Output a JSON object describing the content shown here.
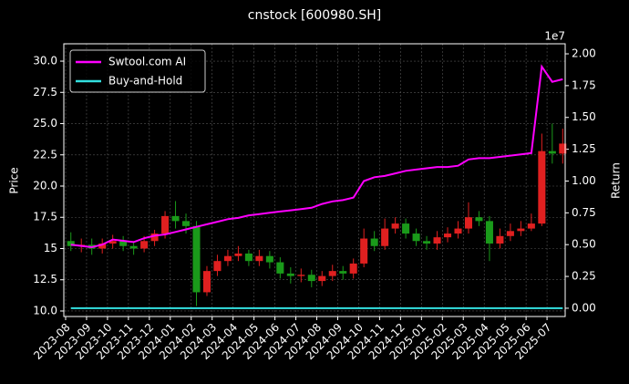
{
  "chart_data": {
    "type": "candlestick",
    "title": "cnstock [600980.SH]",
    "ylabel": "Price",
    "y2label": "Return",
    "y2_offset_label": "1e7",
    "up_color": "#e02020",
    "down_color": "#1a9a1a",
    "grid": true,
    "legend": "upper left",
    "x": [
      "2023-08",
      "2023-08",
      "2023-09",
      "2023-09",
      "2023-10",
      "2023-10",
      "2023-11",
      "2023-11",
      "2023-12",
      "2023-12",
      "2024-01",
      "2024-01",
      "2024-02",
      "2024-02",
      "2024-03",
      "2024-03",
      "2024-04",
      "2024-04",
      "2024-05",
      "2024-05",
      "2024-06",
      "2024-06",
      "2024-07",
      "2024-07",
      "2024-08",
      "2024-08",
      "2024-09",
      "2024-09",
      "2024-10",
      "2024-10",
      "2024-11",
      "2024-11",
      "2024-12",
      "2024-12",
      "2025-01",
      "2025-01",
      "2025-02",
      "2025-02",
      "2025-03",
      "2025-03",
      "2025-04",
      "2025-04",
      "2025-05",
      "2025-05",
      "2025-06",
      "2025-06",
      "2025-07",
      "2025-07"
    ],
    "open": [
      15.6,
      15.2,
      15.3,
      15.0,
      15.4,
      15.6,
      15.2,
      15.0,
      15.6,
      16.2,
      17.6,
      17.2,
      16.8,
      11.5,
      13.2,
      14.0,
      14.4,
      14.6,
      14.0,
      14.4,
      13.9,
      13.0,
      12.8,
      12.9,
      12.4,
      12.8,
      13.2,
      13.0,
      13.8,
      15.8,
      15.2,
      16.6,
      17.0,
      16.2,
      15.6,
      15.4,
      15.9,
      16.2,
      16.6,
      17.5,
      17.2,
      15.4,
      16.0,
      16.4,
      16.6,
      17.0,
      22.8,
      22.6
    ],
    "high": [
      16.3,
      15.8,
      15.8,
      15.8,
      16.1,
      16.0,
      15.6,
      16.0,
      16.5,
      18.0,
      18.8,
      17.8,
      17.2,
      13.6,
      14.5,
      14.9,
      15.2,
      14.9,
      14.9,
      14.8,
      14.3,
      13.5,
      13.4,
      13.3,
      13.2,
      13.7,
      13.6,
      14.2,
      16.6,
      16.4,
      17.4,
      17.5,
      17.4,
      16.6,
      16.0,
      16.4,
      16.7,
      17.2,
      18.7,
      18.0,
      17.6,
      16.6,
      17.0,
      17.2,
      17.8,
      24.2,
      25.0,
      24.6
    ],
    "low": [
      14.8,
      14.7,
      14.5,
      14.6,
      15.0,
      14.8,
      14.5,
      14.7,
      15.2,
      15.8,
      16.6,
      16.2,
      10.4,
      11.2,
      12.8,
      13.6,
      14.0,
      13.6,
      13.6,
      13.4,
      12.6,
      12.2,
      12.3,
      11.9,
      12.0,
      12.4,
      12.5,
      12.6,
      13.5,
      14.8,
      14.9,
      16.2,
      15.8,
      15.2,
      14.9,
      14.9,
      15.5,
      15.8,
      16.2,
      16.8,
      14.0,
      15.0,
      15.6,
      16.0,
      16.4,
      16.8,
      21.8,
      21.8
    ],
    "close": [
      15.2,
      15.3,
      15.0,
      15.4,
      15.6,
      15.2,
      15.0,
      15.6,
      16.2,
      17.6,
      17.2,
      16.8,
      11.5,
      13.2,
      14.0,
      14.4,
      14.6,
      14.0,
      14.4,
      13.9,
      13.0,
      12.8,
      12.9,
      12.4,
      12.8,
      13.2,
      13.0,
      13.8,
      15.8,
      15.2,
      16.6,
      17.0,
      16.2,
      15.6,
      15.4,
      15.9,
      16.2,
      16.6,
      17.5,
      17.2,
      15.4,
      16.0,
      16.4,
      16.6,
      17.0,
      22.8,
      22.6,
      23.4
    ],
    "series": [
      {
        "name": "Swtool.com AI",
        "color": "#ff00ff",
        "axis": "y2",
        "values": [
          0.5,
          0.49,
          0.48,
          0.5,
          0.54,
          0.53,
          0.52,
          0.55,
          0.57,
          0.58,
          0.6,
          0.62,
          0.64,
          0.66,
          0.68,
          0.7,
          0.71,
          0.73,
          0.74,
          0.75,
          0.76,
          0.77,
          0.78,
          0.79,
          0.82,
          0.84,
          0.85,
          0.87,
          1.0,
          1.03,
          1.04,
          1.06,
          1.08,
          1.09,
          1.1,
          1.11,
          1.11,
          1.12,
          1.17,
          1.18,
          1.18,
          1.19,
          1.2,
          1.21,
          1.22,
          1.9,
          1.78,
          1.8
        ]
      },
      {
        "name": "Buy-and-Hold",
        "color": "#33e0e0",
        "axis": "y2",
        "values": [
          0,
          0,
          0,
          0,
          0,
          0,
          0,
          0,
          0,
          0,
          0,
          0,
          0,
          0,
          0,
          0,
          0,
          0,
          0,
          0,
          0,
          0,
          0,
          0,
          0,
          0,
          0,
          0,
          0,
          0,
          0,
          0,
          0,
          0,
          0,
          0,
          0,
          0,
          0,
          0,
          0,
          0,
          0,
          0,
          0,
          0,
          0,
          0
        ]
      }
    ],
    "xticks": [
      "2023-08",
      "2023-09",
      "2023-10",
      "2023-11",
      "2023-12",
      "2024-01",
      "2024-02",
      "2024-03",
      "2024-04",
      "2024-05",
      "2024-06",
      "2024-07",
      "2024-08",
      "2024-09",
      "2024-10",
      "2024-11",
      "2024-12",
      "2025-01",
      "2025-02",
      "2025-03",
      "2025-04",
      "2025-05",
      "2025-06",
      "2025-07"
    ],
    "ylim": [
      9.56,
      31.39
    ],
    "yticks": [
      {
        "value": 10,
        "label": "10.0"
      },
      12.5,
      15.0,
      17.5,
      {
        "value": 20,
        "label": "20.0"
      },
      22.5,
      {
        "value": 25,
        "label": "25.0"
      },
      27.5,
      {
        "value": 30,
        "label": "30.0"
      }
    ],
    "y2lim": [
      -0.065,
      2.079
    ],
    "y2ticks": [
      {
        "value": 0,
        "label": "0.00"
      },
      0.25,
      {
        "value": 0.5,
        "label": "0.50"
      },
      0.75,
      {
        "value": 1,
        "label": "1.00"
      },
      1.25,
      {
        "value": 1.5,
        "label": "1.50"
      },
      1.75,
      {
        "value": 2,
        "label": "2.00"
      }
    ]
  }
}
